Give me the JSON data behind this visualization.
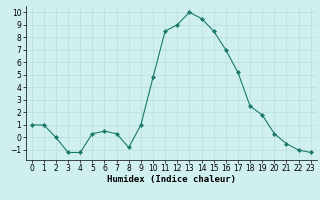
{
  "x": [
    0,
    1,
    2,
    3,
    4,
    5,
    6,
    7,
    8,
    9,
    10,
    11,
    12,
    13,
    14,
    15,
    16,
    17,
    18,
    19,
    20,
    21,
    22,
    23
  ],
  "y": [
    1,
    1,
    0,
    -1.2,
    -1.2,
    0.3,
    0.5,
    0.3,
    -0.8,
    1,
    4.8,
    8.5,
    9,
    10,
    9.5,
    8.5,
    7,
    5.2,
    2.5,
    1.8,
    0.3,
    -0.5,
    -1,
    -1.2
  ],
  "line_color": "#1a7a6a",
  "marker_color": "#1a7a6a",
  "bg_color": "#d0f0f0",
  "grid_color": "#b8dede",
  "xlabel": "Humidex (Indice chaleur)",
  "ylim": [
    -1.8,
    10.5
  ],
  "xlim": [
    -0.5,
    23.5
  ],
  "yticks": [
    -1,
    0,
    1,
    2,
    3,
    4,
    5,
    6,
    7,
    8,
    9,
    10
  ],
  "xticks": [
    0,
    1,
    2,
    3,
    4,
    5,
    6,
    7,
    8,
    9,
    10,
    11,
    12,
    13,
    14,
    15,
    16,
    17,
    18,
    19,
    20,
    21,
    22,
    23
  ],
  "tick_fontsize": 5.5,
  "label_fontsize": 6.5
}
